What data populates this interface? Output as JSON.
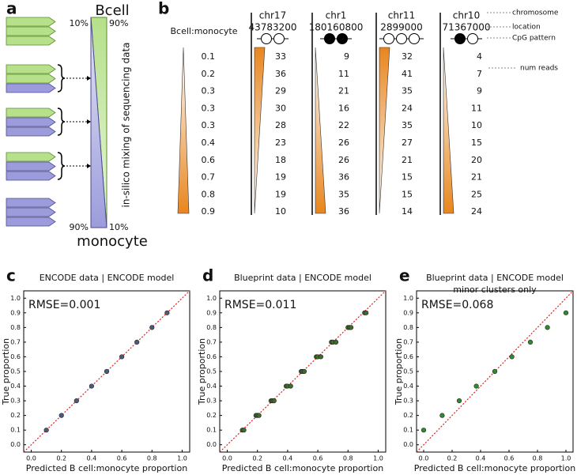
{
  "panel_a": {
    "label": "a",
    "top_label": "Bcell",
    "bottom_label": "monocyte",
    "left_top": "10%",
    "right_top": "90%",
    "left_bottom": "90%",
    "right_bottom": "10%",
    "side_label": "in-silico mixing of sequencing data"
  },
  "panel_b": {
    "label": "b",
    "ratio_header": "Bcell:monocyte",
    "ratios": [
      0.1,
      0.2,
      0.3,
      0.3,
      0.3,
      0.4,
      0.6,
      0.7,
      0.8,
      0.9
    ],
    "columns": [
      {
        "chromosome": "chr17",
        "location": 43783200,
        "methylated": [
          false,
          false
        ],
        "reads": [
          33,
          36,
          29,
          30,
          28,
          23,
          18,
          19,
          19,
          10
        ]
      },
      {
        "chromosome": "chr1",
        "location": 180160800,
        "methylated": [
          true,
          true
        ],
        "reads": [
          9,
          11,
          21,
          16,
          22,
          26,
          26,
          36,
          35,
          36
        ]
      },
      {
        "chromosome": "chr11",
        "location": 2899000,
        "methylated": [
          false,
          false,
          false
        ],
        "reads": [
          32,
          41,
          35,
          24,
          35,
          27,
          21,
          15,
          15,
          14
        ]
      },
      {
        "chromosome": "chr10",
        "location": 71367000,
        "methylated": [
          true,
          false
        ],
        "reads": [
          4,
          7,
          9,
          11,
          10,
          15,
          20,
          21,
          25,
          24
        ]
      }
    ],
    "legend": {
      "chromosome": "chromosome",
      "location": "location",
      "cpg": "CpG pattern",
      "reads": "num reads"
    }
  },
  "chart_data": [
    {
      "panel": "c",
      "type": "scatter",
      "title": "ENCODE data | ENCODE model",
      "annotation": "RMSE=0.001",
      "x": [
        0.1,
        0.2,
        0.3,
        0.4,
        0.5,
        0.6,
        0.7,
        0.8,
        0.9
      ],
      "y": [
        0.1,
        0.2,
        0.3,
        0.4,
        0.5,
        0.6,
        0.7,
        0.8,
        0.9
      ],
      "color": "#4d5a7c",
      "xlabel": "Predicted B cell:monocyte proportion",
      "ylabel": "True proportion",
      "xlim": [
        -0.05,
        1.05
      ],
      "ylim": [
        -0.05,
        1.05
      ],
      "xticks": [
        {
          "value": 0,
          "label": "0.0"
        },
        0.2,
        0.4,
        0.6,
        0.8,
        {
          "value": 1,
          "label": "1.0"
        }
      ],
      "yticks": [
        {
          "value": 0,
          "label": "0.0"
        },
        0.1,
        0.2,
        0.3,
        0.4,
        0.5,
        0.6,
        0.7,
        0.8,
        0.9,
        {
          "value": 1,
          "label": "1.0"
        }
      ]
    },
    {
      "panel": "d",
      "type": "scatter",
      "title": "Blueprint data | ENCODE model",
      "annotation": "RMSE=0.011",
      "x": [
        0.1,
        0.11,
        0.19,
        0.2,
        0.21,
        0.29,
        0.3,
        0.31,
        0.39,
        0.4,
        0.42,
        0.49,
        0.5,
        0.51,
        0.59,
        0.6,
        0.62,
        0.69,
        0.7,
        0.72,
        0.8,
        0.81,
        0.82,
        0.91,
        0.92
      ],
      "y": [
        0.1,
        0.1,
        0.2,
        0.2,
        0.2,
        0.3,
        0.3,
        0.3,
        0.4,
        0.4,
        0.4,
        0.5,
        0.5,
        0.5,
        0.6,
        0.6,
        0.6,
        0.7,
        0.7,
        0.7,
        0.8,
        0.8,
        0.8,
        0.9,
        0.9
      ],
      "color": "#3f6b2c",
      "xlabel": "Predicted B cell:monocyte proportion",
      "ylabel": "True proportion",
      "xlim": [
        -0.05,
        1.05
      ],
      "ylim": [
        -0.05,
        1.05
      ],
      "xticks": [
        {
          "value": 0,
          "label": "0.0"
        },
        0.2,
        0.4,
        0.6,
        0.8,
        {
          "value": 1,
          "label": "1.0"
        }
      ],
      "yticks": [
        {
          "value": 0,
          "label": "0.0"
        },
        0.1,
        0.2,
        0.3,
        0.4,
        0.5,
        0.6,
        0.7,
        0.8,
        0.9,
        {
          "value": 1,
          "label": "1.0"
        }
      ]
    },
    {
      "panel": "e",
      "type": "scatter",
      "title": "Blueprint data | ENCODE model",
      "subtitle": "minor clusters only",
      "annotation": "RMSE=0.068",
      "x": [
        0.0,
        0.13,
        0.25,
        0.37,
        0.5,
        0.62,
        0.75,
        0.87,
        1.0
      ],
      "y": [
        0.1,
        0.2,
        0.3,
        0.4,
        0.5,
        0.6,
        0.7,
        0.8,
        0.9
      ],
      "color": "#2e8b2e",
      "xlabel": "Predicted B cell:monocyte proportion",
      "ylabel": "True proportion",
      "xlim": [
        -0.05,
        1.05
      ],
      "ylim": [
        -0.05,
        1.05
      ],
      "xticks": [
        {
          "value": 0,
          "label": "0.0"
        },
        0.2,
        0.4,
        0.6,
        0.8,
        {
          "value": 1,
          "label": "1.0"
        }
      ],
      "yticks": [
        {
          "value": 0,
          "label": "0.0"
        },
        0.1,
        0.2,
        0.3,
        0.4,
        0.5,
        0.6,
        0.7,
        0.8,
        0.9,
        {
          "value": 1,
          "label": "1.0"
        }
      ]
    }
  ]
}
